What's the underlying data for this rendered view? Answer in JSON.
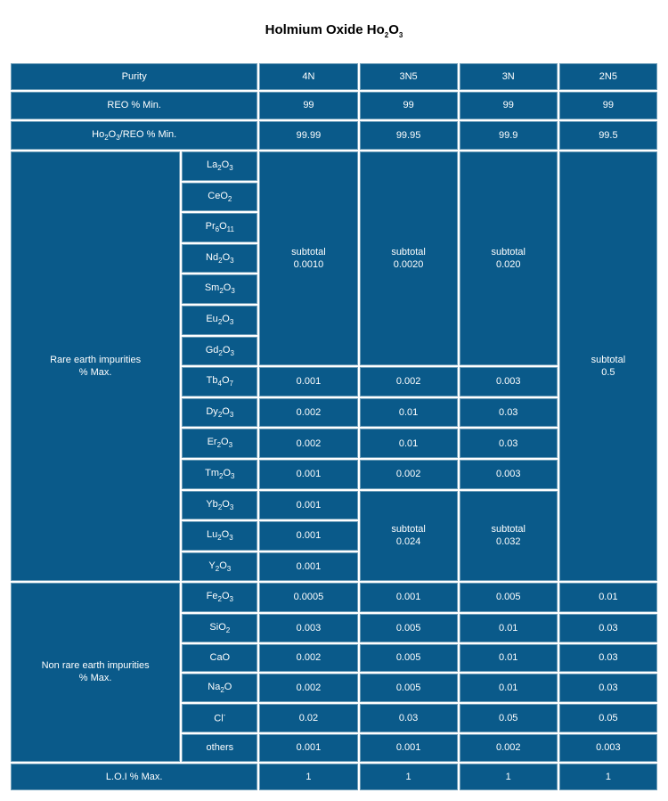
{
  "title_prefix": "Holmium Oxide  Ho",
  "title_sub1": "2",
  "title_mid": "O",
  "title_sub2": "3",
  "hdr_purity": "Purity",
  "hdr_4n": "4N",
  "hdr_3n5": "3N5",
  "hdr_3n": "3N",
  "hdr_2n5": "2N5",
  "reo_label": "REO % Min.",
  "reo_v1": "99",
  "reo_v2": "99",
  "reo_v3": "99",
  "reo_v4": "99",
  "ho_label_a": "Ho",
  "ho_label_s1": "2",
  "ho_label_b": "O",
  "ho_label_s2": "3",
  "ho_label_c": "/REO % Min.",
  "ho_v1": "99.99",
  "ho_v2": "99.95",
  "ho_v3": "99.9",
  "ho_v4": "99.5",
  "rare_label_a": "Rare earth impurities",
  "rare_label_b": "% Max.",
  "comp_la_a": "La",
  "comp_la_s1": "2",
  "comp_la_b": "O",
  "comp_la_s2": "3",
  "comp_ce_a": "CeO",
  "comp_ce_s1": "2",
  "comp_pr_a": "Pr",
  "comp_pr_s1": "6",
  "comp_pr_b": "O",
  "comp_pr_s2": "11",
  "comp_nd_a": "Nd",
  "comp_nd_s1": "2",
  "comp_nd_b": "O",
  "comp_nd_s2": "3",
  "comp_sm_a": "Sm",
  "comp_sm_s1": "2",
  "comp_sm_b": "O",
  "comp_sm_s2": "3",
  "comp_eu_a": "Eu",
  "comp_eu_s1": "2",
  "comp_eu_b": "O",
  "comp_eu_s2": "3",
  "comp_gd_a": "Gd",
  "comp_gd_s1": "2",
  "comp_gd_b": "O",
  "comp_gd_s2": "3",
  "comp_tb_a": "Tb",
  "comp_tb_s1": "4",
  "comp_tb_b": "O",
  "comp_tb_s2": "7",
  "comp_dy_a": "Dy",
  "comp_dy_s1": "2",
  "comp_dy_b": "O",
  "comp_dy_s2": "3",
  "comp_er_a": "Er",
  "comp_er_s1": "2",
  "comp_er_b": "O",
  "comp_er_s2": "3",
  "comp_tm_a": "Tm",
  "comp_tm_s1": "2",
  "comp_tm_b": "O",
  "comp_tm_s2": "3",
  "comp_yb_a": "Yb",
  "comp_yb_s1": "2",
  "comp_yb_b": "O",
  "comp_yb_s2": "3",
  "comp_lu_a": "Lu",
  "comp_lu_s1": "2",
  "comp_lu_b": "O",
  "comp_lu_s2": "3",
  "comp_y_a": "Y",
  "comp_y_s1": "2",
  "comp_y_b": "O",
  "comp_y_s2": "3",
  "st_label": "subtotal",
  "st4n_top": "0.0010",
  "st3n5_top": "0.0020",
  "st3n_top": "0.020",
  "st2n5_all": "0.5",
  "tb_4n": "0.001",
  "tb_3n5": "0.002",
  "tb_3n": "0.003",
  "dy_4n": "0.002",
  "dy_3n5": "0.01",
  "dy_3n": "0.03",
  "er_4n": "0.002",
  "er_3n5": "0.01",
  "er_3n": "0.03",
  "tm_4n": "0.001",
  "tm_3n5": "0.002",
  "tm_3n": "0.003",
  "yb_4n": "0.001",
  "lu_4n": "0.001",
  "y_4n": "0.001",
  "st3n5_bot": "0.024",
  "st3n_bot": "0.032",
  "nre_label_a": "Non rare earth impurities",
  "nre_label_b": "% Max.",
  "fe_a": "Fe",
  "fe_s1": "2",
  "fe_b": "O",
  "fe_s2": "3",
  "fe_v1": "0.0005",
  "fe_v2": "0.001",
  "fe_v3": "0.005",
  "fe_v4": "0.01",
  "si_a": "SiO",
  "si_s1": "2",
  "si_v1": "0.003",
  "si_v2": "0.005",
  "si_v3": "0.01",
  "si_v4": "0.03",
  "ca_a": "CaO",
  "ca_v1": "0.002",
  "ca_v2": "0.005",
  "ca_v3": "0.01",
  "ca_v4": "0.03",
  "na_a": "Na",
  "na_s1": "2",
  "na_b": "O",
  "na_v1": "0.002",
  "na_v2": "0.005",
  "na_v3": "0.01",
  "na_v4": "0.03",
  "cl_a": "Cl",
  "cl_sup": "-",
  "cl_v1": "0.02",
  "cl_v2": "0.03",
  "cl_v3": "0.05",
  "cl_v4": "0.05",
  "ot_a": "others",
  "ot_v1": "0.001",
  "ot_v2": "0.001",
  "ot_v3": "0.002",
  "ot_v4": "0.003",
  "loi_label": "L.O.I % Max.",
  "loi_v1": "1",
  "loi_v2": "1",
  "loi_v3": "1",
  "loi_v4": "1",
  "colors": {
    "cell_bg": "#0a5a8a",
    "cell_border": "#6b9cb8",
    "text": "#ffffff",
    "page_bg": "#ffffff"
  }
}
